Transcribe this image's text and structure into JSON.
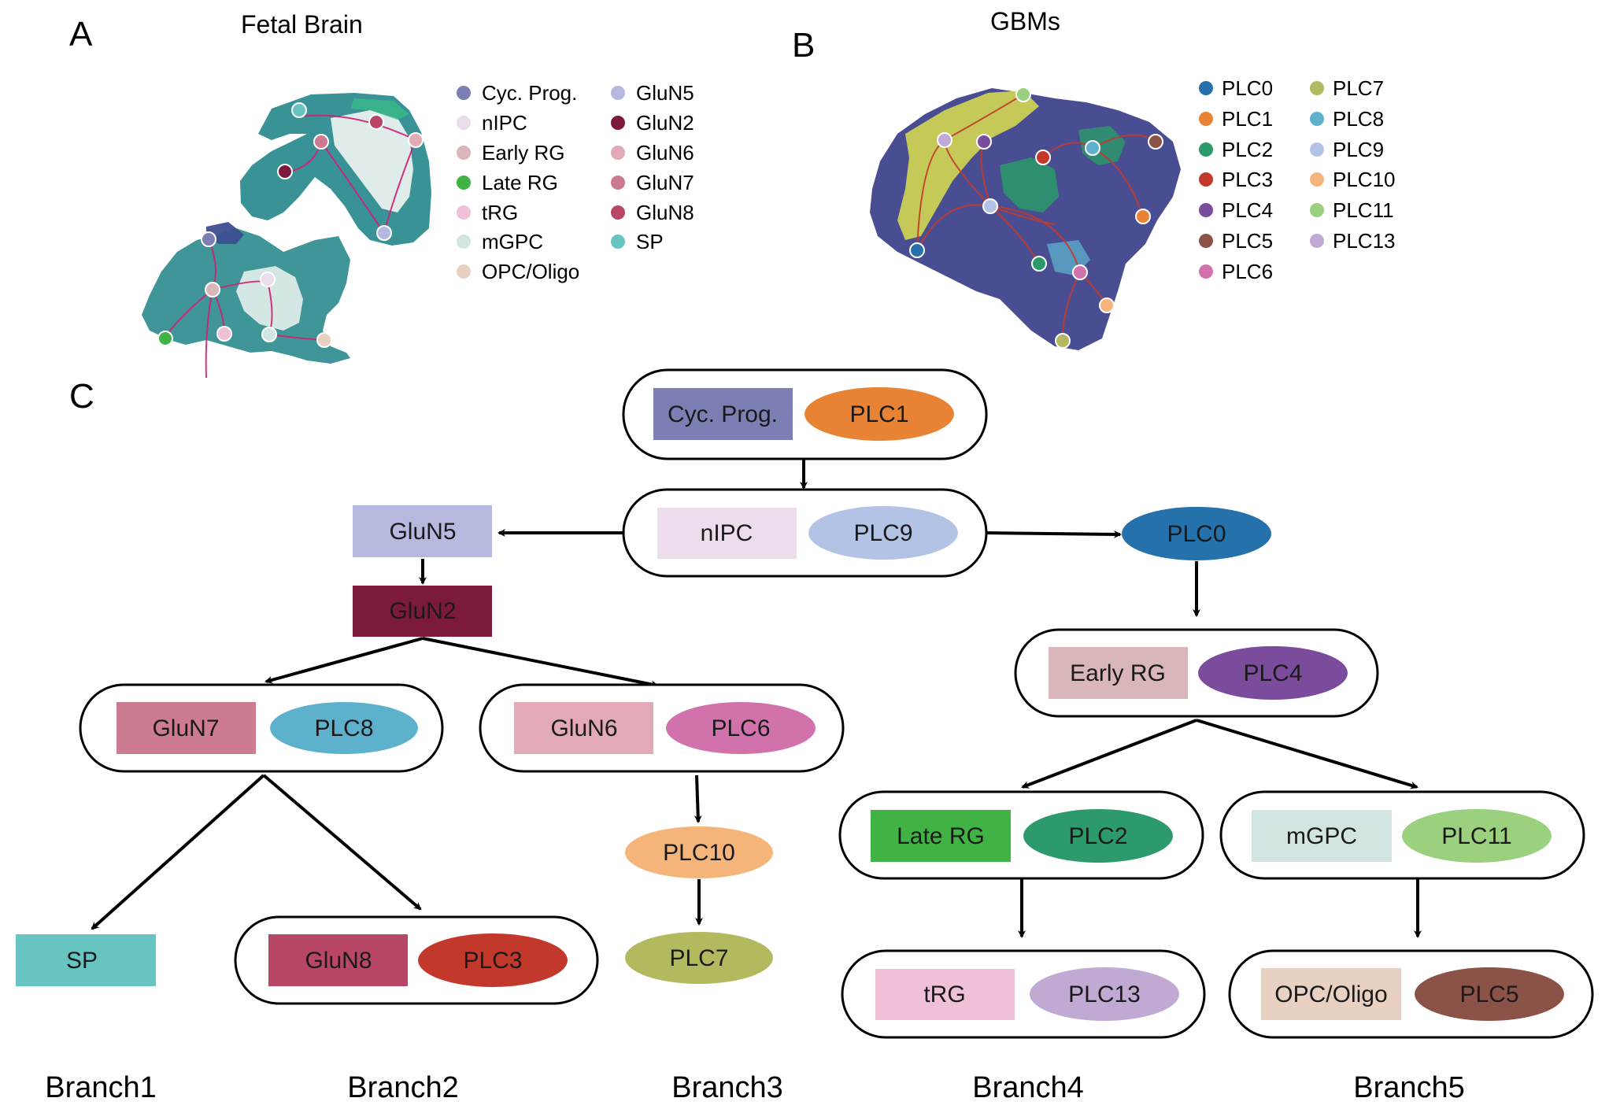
{
  "panels": {
    "a": {
      "letter": "A",
      "title": "Fetal Brain"
    },
    "b": {
      "letter": "B",
      "title": "GBMs"
    },
    "c": {
      "letter": "C"
    }
  },
  "colors": {
    "cyc_prog": "#7b7fb4",
    "nipc": "#ecdcec",
    "early_rg": "#d9b6ba",
    "late_rg": "#40b344",
    "trg": "#efc0d8",
    "mgpc": "#d2e5e3",
    "opc_oligo": "#e8d1c3",
    "glun5": "#b6b9dd",
    "glun2": "#7b1a3c",
    "glun6": "#e2a9b6",
    "glun7": "#cc7b91",
    "glun8": "#b84766",
    "sp": "#67c4c0",
    "plc0": "#2471ab",
    "plc1": "#e88335",
    "plc2": "#2c9a6a",
    "plc3": "#c2392b",
    "plc4": "#7b4b9c",
    "plc5": "#8b5348",
    "plc6": "#d172ad",
    "plc7": "#b3b95f",
    "plc8": "#5eb1cd",
    "plc9": "#b3c3e6",
    "plc10": "#f5b57a",
    "plc11": "#9bd07f",
    "plc13": "#c0a9d3",
    "umap_fetal_main": "#2a8a8d",
    "umap_fetal_dark": "#3c4e92",
    "umap_gbm_main": "#3a3f8a",
    "umap_gbm_yellow": "#e3e84a",
    "trajectory": "#d02070"
  },
  "legend_a": {
    "col1": [
      {
        "label": "Cyc. Prog.",
        "color": "#7b7fb4"
      },
      {
        "label": "nIPC",
        "color": "#ecdcec"
      },
      {
        "label": "Early RG",
        "color": "#d9b6ba"
      },
      {
        "label": "Late RG",
        "color": "#40b344"
      },
      {
        "label": "tRG",
        "color": "#efc0d8"
      },
      {
        "label": "mGPC",
        "color": "#d2e5e3"
      },
      {
        "label": "OPC/Oligo",
        "color": "#e8d1c3"
      }
    ],
    "col2": [
      {
        "label": "GluN5",
        "color": "#b6b9dd"
      },
      {
        "label": "GluN2",
        "color": "#7b1a3c"
      },
      {
        "label": "GluN6",
        "color": "#e2a9b6"
      },
      {
        "label": "GluN7",
        "color": "#cc7b91"
      },
      {
        "label": "GluN8",
        "color": "#b84766"
      },
      {
        "label": "SP",
        "color": "#67c4c0"
      }
    ]
  },
  "legend_b": {
    "col1": [
      {
        "label": "PLC0",
        "color": "#2471ab"
      },
      {
        "label": "PLC1",
        "color": "#e88335"
      },
      {
        "label": "PLC2",
        "color": "#2c9a6a"
      },
      {
        "label": "PLC3",
        "color": "#c2392b"
      },
      {
        "label": "PLC4",
        "color": "#7b4b9c"
      },
      {
        "label": "PLC5",
        "color": "#8b5348"
      },
      {
        "label": "PLC6",
        "color": "#d172ad"
      }
    ],
    "col2": [
      {
        "label": "PLC7",
        "color": "#b3b95f"
      },
      {
        "label": "PLC8",
        "color": "#5eb1cd"
      },
      {
        "label": "PLC9",
        "color": "#b3c3e6"
      },
      {
        "label": "PLC10",
        "color": "#f5b57a"
      },
      {
        "label": "PLC11",
        "color": "#9bd07f"
      },
      {
        "label": "PLC13",
        "color": "#c0a9d3"
      }
    ]
  },
  "tree": {
    "cyc_prog": "Cyc. Prog.",
    "plc1": "PLC1",
    "nipc": "nIPC",
    "plc9": "PLC9",
    "glun5": "GluN5",
    "glun2": "GluN2",
    "glun7": "GluN7",
    "plc8": "PLC8",
    "glun6": "GluN6",
    "plc6": "PLC6",
    "sp": "SP",
    "glun8": "GluN8",
    "plc3": "PLC3",
    "plc10": "PLC10",
    "plc7": "PLC7",
    "plc0": "PLC0",
    "early_rg": "Early RG",
    "plc4": "PLC4",
    "late_rg": "Late RG",
    "plc2": "PLC2",
    "mgpc": "mGPC",
    "plc11": "PLC11",
    "trg": "tRG",
    "plc13": "PLC13",
    "opc_oligo": "OPC/Oligo",
    "plc5": "PLC5"
  },
  "branches": {
    "b1": "Branch1",
    "b2": "Branch2",
    "b3": "Branch3",
    "b4": "Branch4",
    "b5": "Branch5"
  }
}
